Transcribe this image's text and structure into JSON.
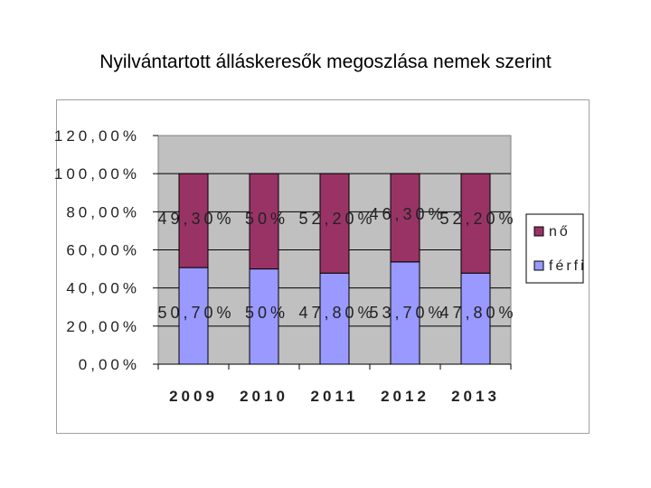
{
  "chart_data": {
    "type": "bar",
    "stacked": true,
    "title": "Nyilvántartott álláskeresők megoszlása nemek szerint",
    "categories": [
      "2009",
      "2010",
      "2011",
      "2012",
      "2013"
    ],
    "ylim": [
      0,
      120
    ],
    "yticks": [
      "0,00%",
      "20,00%",
      "40,00%",
      "60,00%",
      "80,00%",
      "100,00%",
      "120,00%"
    ],
    "grid": true,
    "legend_position": "right",
    "series": [
      {
        "name": "férfi",
        "color": "#9999ff",
        "values": [
          50.7,
          50,
          47.8,
          53.7,
          47.8
        ],
        "labels": [
          "50,70%",
          "50%",
          "47,80%",
          "53,70%",
          "47,80%"
        ]
      },
      {
        "name": "nő",
        "color": "#993366",
        "values": [
          49.3,
          50,
          52.2,
          46.3,
          52.2
        ],
        "labels": [
          "49,30%",
          "50%",
          "52,20%",
          "46,30%",
          "52,20%"
        ]
      }
    ],
    "plot_background": "#c0c0c0"
  }
}
